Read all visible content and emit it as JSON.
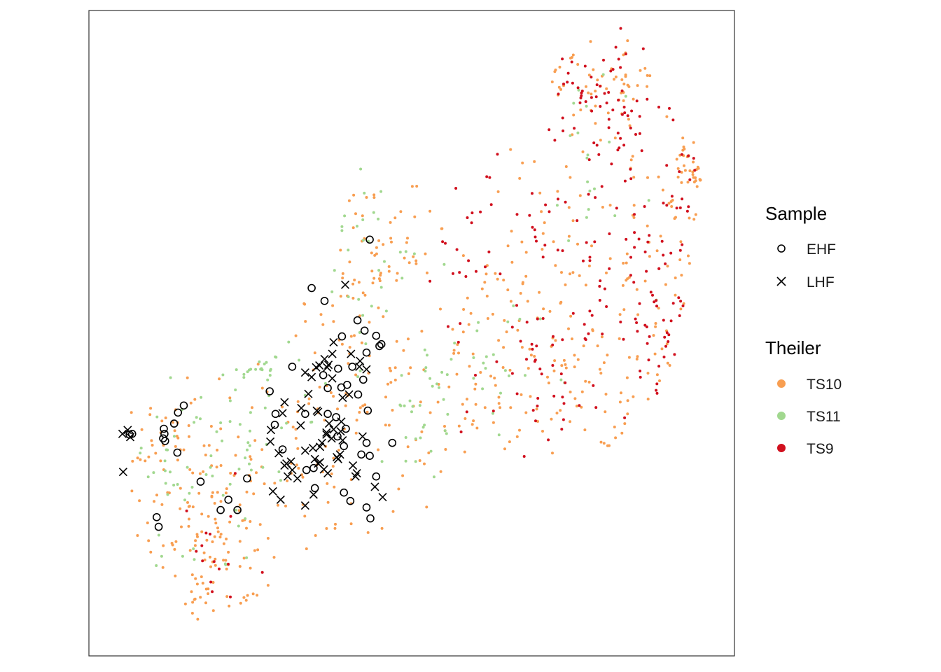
{
  "chart_data": {
    "type": "scatter",
    "title": "",
    "xlabel": "",
    "ylabel": "",
    "axes_visible": false,
    "grid": false,
    "legend_position": "right",
    "xlim": [
      0,
      100
    ],
    "ylim": [
      0,
      100
    ],
    "legends": {
      "sample": {
        "title": "Sample",
        "entries": [
          {
            "label": "EHF",
            "shape": "open-circle",
            "color": "#000000"
          },
          {
            "label": "LHF",
            "shape": "cross",
            "color": "#000000"
          }
        ]
      },
      "theiler": {
        "title": "Theiler",
        "entries": [
          {
            "label": "TS10",
            "color": "#F89E51"
          },
          {
            "label": "TS11",
            "color": "#A1D88F"
          },
          {
            "label": "TS9",
            "color": "#D1101E"
          }
        ]
      }
    },
    "background_point_clusters": [
      {
        "series": "TS10",
        "n": 90,
        "cx": 14,
        "cy": 30,
        "sx": 6,
        "sy": 9
      },
      {
        "series": "TS10",
        "n": 70,
        "cx": 19,
        "cy": 14,
        "sx": 5,
        "sy": 6
      },
      {
        "series": "TS10",
        "n": 60,
        "cx": 33,
        "cy": 28,
        "sx": 7,
        "sy": 8
      },
      {
        "series": "TS10",
        "n": 60,
        "cx": 42,
        "cy": 44,
        "sx": 6,
        "sy": 9
      },
      {
        "series": "TS10",
        "n": 50,
        "cx": 44,
        "cy": 62,
        "sx": 5,
        "sy": 8
      },
      {
        "series": "TS10",
        "n": 70,
        "cx": 58,
        "cy": 40,
        "sx": 7,
        "sy": 10
      },
      {
        "series": "TS10",
        "n": 60,
        "cx": 67,
        "cy": 60,
        "sx": 6,
        "sy": 12
      },
      {
        "series": "TS10",
        "n": 55,
        "cx": 76,
        "cy": 40,
        "sx": 6,
        "sy": 8
      },
      {
        "series": "TS10",
        "n": 60,
        "cx": 82,
        "cy": 72,
        "sx": 7,
        "sy": 12
      },
      {
        "series": "TS10",
        "n": 50,
        "cx": 90,
        "cy": 52,
        "sx": 4,
        "sy": 14
      },
      {
        "series": "TS10",
        "n": 40,
        "cx": 80,
        "cy": 90,
        "sx": 4,
        "sy": 3
      },
      {
        "series": "TS10",
        "n": 30,
        "cx": 94,
        "cy": 76,
        "sx": 2,
        "sy": 2
      },
      {
        "series": "TS11",
        "n": 40,
        "cx": 14,
        "cy": 28,
        "sx": 6,
        "sy": 8
      },
      {
        "series": "TS11",
        "n": 35,
        "cx": 25,
        "cy": 34,
        "sx": 6,
        "sy": 8
      },
      {
        "series": "TS11",
        "n": 35,
        "cx": 42,
        "cy": 62,
        "sx": 5,
        "sy": 10
      },
      {
        "series": "TS11",
        "n": 30,
        "cx": 51,
        "cy": 37,
        "sx": 3,
        "sy": 6
      },
      {
        "series": "TS11",
        "n": 25,
        "cx": 62,
        "cy": 45,
        "sx": 4,
        "sy": 4
      },
      {
        "series": "TS11",
        "n": 20,
        "cx": 79,
        "cy": 78,
        "sx": 5,
        "sy": 10
      },
      {
        "series": "TS11",
        "n": 15,
        "cx": 25,
        "cy": 45,
        "sx": 1.5,
        "sy": 1.5
      },
      {
        "series": "TS9",
        "n": 70,
        "cx": 82,
        "cy": 70,
        "sx": 6,
        "sy": 14
      },
      {
        "series": "TS9",
        "n": 60,
        "cx": 91,
        "cy": 55,
        "sx": 4,
        "sy": 14
      },
      {
        "series": "TS9",
        "n": 50,
        "cx": 70,
        "cy": 45,
        "sx": 7,
        "sy": 9
      },
      {
        "series": "TS9",
        "n": 40,
        "cx": 79,
        "cy": 88,
        "sx": 4,
        "sy": 4
      },
      {
        "series": "TS9",
        "n": 30,
        "cx": 61,
        "cy": 62,
        "sx": 5,
        "sy": 8
      },
      {
        "series": "TS9",
        "n": 15,
        "cx": 20,
        "cy": 15,
        "sx": 4,
        "sy": 4
      }
    ],
    "sample_points": {
      "EHF": [
        [
          43.5,
          64.5
        ],
        [
          45,
          48
        ],
        [
          37,
          41.5
        ],
        [
          43,
          47
        ],
        [
          36.3,
          43.5
        ],
        [
          38.6,
          44.5
        ],
        [
          40.8,
          44.8
        ],
        [
          42.5,
          42.8
        ],
        [
          34.5,
          57
        ],
        [
          36.5,
          55
        ],
        [
          39.2,
          49.5
        ],
        [
          41.6,
          52
        ],
        [
          42.7,
          50.4
        ],
        [
          44.5,
          49.6
        ],
        [
          45.3,
          48.3
        ],
        [
          43,
          33
        ],
        [
          42.2,
          31.2
        ],
        [
          47,
          33
        ],
        [
          39.5,
          32.5
        ],
        [
          38.5,
          34
        ],
        [
          38.3,
          37
        ],
        [
          37,
          37.5
        ],
        [
          39.8,
          35.2
        ],
        [
          28,
          41
        ],
        [
          30,
          32
        ],
        [
          24.5,
          27.5
        ],
        [
          23,
          22.6
        ],
        [
          20.4,
          22.6
        ],
        [
          21.6,
          24.2
        ],
        [
          13.8,
          37.7
        ],
        [
          14.7,
          38.8
        ],
        [
          13.2,
          36
        ],
        [
          11.7,
          34.4
        ],
        [
          11.6,
          35.2
        ],
        [
          11.5,
          33.7
        ],
        [
          11.8,
          33.3
        ],
        [
          6.3,
          34.3
        ],
        [
          6.7,
          34.4
        ],
        [
          13.7,
          31.5
        ],
        [
          17.3,
          27
        ],
        [
          10.5,
          21.5
        ],
        [
          10.8,
          20
        ],
        [
          43,
          23
        ],
        [
          43.6,
          21.3
        ],
        [
          31.5,
          44.8
        ],
        [
          41.7,
          40.5
        ],
        [
          39.1,
          41.6
        ],
        [
          28.9,
          37.5
        ],
        [
          28.8,
          35.8
        ],
        [
          33.5,
          37.5
        ],
        [
          35,
          26
        ],
        [
          33.7,
          28.8
        ],
        [
          34.8,
          29.1
        ],
        [
          44.5,
          27.8
        ],
        [
          43.5,
          31
        ],
        [
          40.5,
          24
        ],
        [
          39.5,
          25.3
        ],
        [
          43.2,
          38
        ],
        [
          40,
          42
        ]
      ],
      "LHF": [
        [
          39.7,
          57.5
        ],
        [
          40.6,
          46.8
        ],
        [
          41.9,
          44.8
        ],
        [
          42,
          45.7
        ],
        [
          43,
          44.4
        ],
        [
          37.7,
          43
        ],
        [
          36.9,
          44.7
        ],
        [
          36.5,
          46
        ],
        [
          33.5,
          43.9
        ],
        [
          34,
          40.6
        ],
        [
          32.9,
          38.4
        ],
        [
          30,
          37.6
        ],
        [
          28.2,
          35
        ],
        [
          28.1,
          33.2
        ],
        [
          29.4,
          31.4
        ],
        [
          30.6,
          29.8
        ],
        [
          31.5,
          28.8
        ],
        [
          33.5,
          31.8
        ],
        [
          35,
          30.5
        ],
        [
          35.5,
          29.8
        ],
        [
          35.8,
          30
        ],
        [
          36.4,
          28.9
        ],
        [
          37,
          28.3
        ],
        [
          38.6,
          30.5
        ],
        [
          38.9,
          31.2
        ],
        [
          39.3,
          33.4
        ],
        [
          37.9,
          35.1
        ],
        [
          37.6,
          33.7
        ],
        [
          36.8,
          34.6
        ],
        [
          36.1,
          33
        ],
        [
          35.8,
          32.4
        ],
        [
          34.7,
          32.2
        ],
        [
          32.3,
          27.5
        ],
        [
          31.3,
          30.1
        ],
        [
          30.8,
          27.8
        ],
        [
          36.8,
          34.3
        ],
        [
          39.1,
          36.3
        ],
        [
          37.2,
          36
        ],
        [
          35.3,
          38
        ],
        [
          35.5,
          37.8
        ],
        [
          37.7,
          46.8
        ],
        [
          37.9,
          48.6
        ],
        [
          37.1,
          45.1
        ],
        [
          35.7,
          45
        ],
        [
          35.2,
          44.7
        ],
        [
          34.5,
          43.2
        ],
        [
          39,
          34.8
        ],
        [
          38.4,
          30.8
        ],
        [
          40.9,
          29.5
        ],
        [
          41.5,
          28.3
        ],
        [
          41.3,
          27.8
        ],
        [
          32.8,
          35.7
        ],
        [
          30.3,
          39.3
        ],
        [
          42.4,
          34
        ],
        [
          45.5,
          24.6
        ],
        [
          44.3,
          26.2
        ],
        [
          40.3,
          40.5
        ],
        [
          39.3,
          40
        ],
        [
          6,
          35
        ],
        [
          5.2,
          34.4
        ],
        [
          6.4,
          33.9
        ],
        [
          5.3,
          28.5
        ],
        [
          33.5,
          23.3
        ],
        [
          34.8,
          25
        ],
        [
          30.3,
          29.5
        ],
        [
          28.5,
          25.5
        ],
        [
          29.7,
          24.2
        ]
      ]
    }
  }
}
